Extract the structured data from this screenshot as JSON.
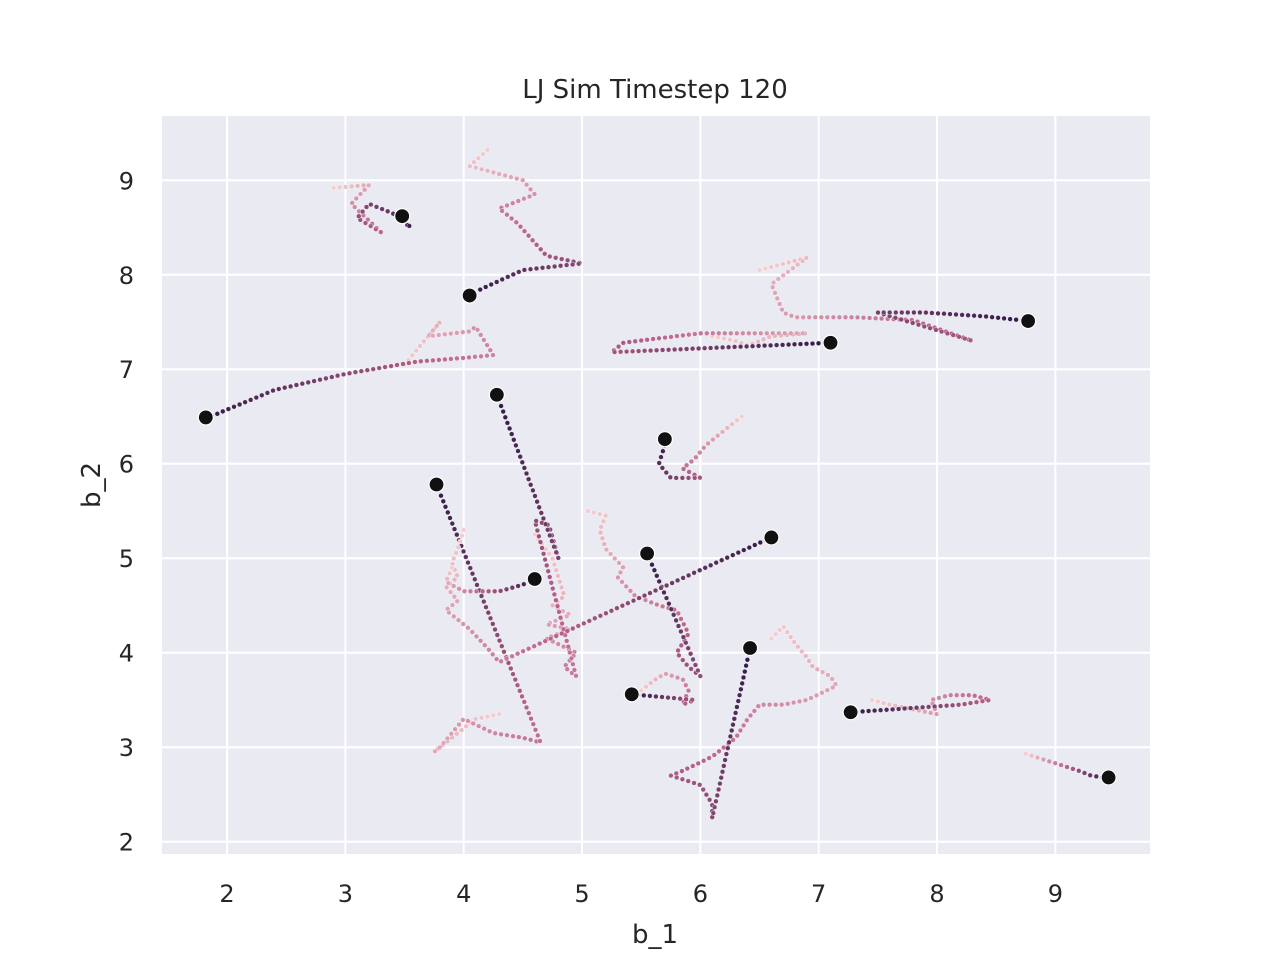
{
  "chart_data": {
    "type": "scatter",
    "title": "LJ Sim Timestep 120",
    "xlabel": "b_1",
    "ylabel": "b_2",
    "xlim": [
      1.45,
      9.8
    ],
    "ylim": [
      1.87,
      9.68
    ],
    "xticks": [
      2,
      3,
      4,
      5,
      6,
      7,
      8,
      9
    ],
    "yticks": [
      2,
      3,
      4,
      5,
      6,
      7,
      8,
      9
    ],
    "grid": true,
    "legend": "none",
    "colors": {
      "background": "#eaeaf2",
      "grid": "#ffffff",
      "trail_old": "#f5cdd0",
      "trail_mid": "#b7628a",
      "trail_recent": "#2e1a47",
      "particle": "#111111"
    },
    "particles": [
      {
        "x": 3.48,
        "y": 8.62,
        "trail": [
          [
            2.9,
            8.92
          ],
          [
            3.2,
            8.95
          ],
          [
            3.05,
            8.75
          ],
          [
            3.3,
            8.45
          ],
          [
            3.1,
            8.6
          ],
          [
            3.2,
            8.75
          ],
          [
            3.4,
            8.65
          ],
          [
            3.55,
            8.5
          ]
        ]
      },
      {
        "x": 4.05,
        "y": 7.78,
        "trail": [
          [
            4.2,
            9.32
          ],
          [
            4.05,
            9.15
          ],
          [
            4.5,
            9.0
          ],
          [
            4.6,
            8.85
          ],
          [
            4.3,
            8.7
          ],
          [
            4.45,
            8.55
          ],
          [
            4.7,
            8.2
          ],
          [
            5.0,
            8.12
          ],
          [
            4.5,
            8.05
          ],
          [
            4.15,
            7.85
          ]
        ]
      },
      {
        "x": 8.77,
        "y": 7.51,
        "trail": [
          [
            6.5,
            8.05
          ],
          [
            6.9,
            8.18
          ],
          [
            6.6,
            7.9
          ],
          [
            6.7,
            7.6
          ],
          [
            6.8,
            7.55
          ],
          [
            7.3,
            7.55
          ],
          [
            7.8,
            7.52
          ],
          [
            8.3,
            7.3
          ],
          [
            7.5,
            7.6
          ],
          [
            7.9,
            7.6
          ],
          [
            8.4,
            7.56
          ],
          [
            8.7,
            7.52
          ]
        ]
      },
      {
        "x": 7.1,
        "y": 7.28,
        "trail": [
          [
            6.1,
            7.35
          ],
          [
            6.3,
            7.3
          ],
          [
            6.4,
            7.25
          ],
          [
            6.6,
            7.35
          ],
          [
            6.9,
            7.38
          ],
          [
            6.4,
            7.38
          ],
          [
            6.0,
            7.38
          ],
          [
            5.6,
            7.32
          ],
          [
            5.35,
            7.28
          ],
          [
            5.25,
            7.18
          ]
        ]
      },
      {
        "x": 1.82,
        "y": 6.49,
        "trail": [
          [
            3.5,
            7.05
          ],
          [
            3.8,
            7.5
          ],
          [
            3.7,
            7.35
          ],
          [
            4.05,
            7.4
          ],
          [
            4.1,
            7.45
          ],
          [
            4.25,
            7.15
          ],
          [
            4.0,
            7.12
          ],
          [
            3.6,
            7.08
          ],
          [
            3.0,
            6.95
          ],
          [
            2.4,
            6.78
          ],
          [
            1.9,
            6.52
          ]
        ]
      },
      {
        "x": 4.28,
        "y": 6.73,
        "trail": [
          [
            4.6,
            5.25
          ],
          [
            4.75,
            5.0
          ],
          [
            4.85,
            4.6
          ],
          [
            4.75,
            4.5
          ],
          [
            4.9,
            4.4
          ],
          [
            4.7,
            4.3
          ],
          [
            4.9,
            4.25
          ],
          [
            4.7,
            4.15
          ],
          [
            4.95,
            4.0
          ],
          [
            4.85,
            3.85
          ],
          [
            4.95,
            3.75
          ],
          [
            4.6,
            5.4
          ],
          [
            4.72,
            5.35
          ],
          [
            4.8,
            5.0
          ]
        ]
      },
      {
        "x": 5.7,
        "y": 6.26,
        "trail": [
          [
            6.35,
            6.5
          ],
          [
            6.2,
            6.35
          ],
          [
            6.05,
            6.2
          ],
          [
            5.95,
            6.05
          ],
          [
            5.85,
            5.95
          ],
          [
            6.0,
            5.85
          ],
          [
            5.75,
            5.85
          ],
          [
            5.65,
            6.0
          ],
          [
            5.7,
            6.2
          ]
        ]
      },
      {
        "x": 3.77,
        "y": 5.78,
        "trail": [
          [
            4.3,
            3.35
          ],
          [
            4.1,
            3.3
          ],
          [
            3.9,
            3.1
          ],
          [
            3.75,
            2.95
          ],
          [
            3.8,
            3.0
          ],
          [
            4.0,
            3.3
          ],
          [
            4.25,
            3.15
          ],
          [
            4.5,
            3.1
          ],
          [
            4.65,
            3.05
          ]
        ]
      },
      {
        "x": 5.55,
        "y": 5.05,
        "trail": [
          [
            5.05,
            5.5
          ],
          [
            5.2,
            5.45
          ],
          [
            5.15,
            5.3
          ],
          [
            5.2,
            5.1
          ],
          [
            5.35,
            4.9
          ],
          [
            5.3,
            4.8
          ],
          [
            5.45,
            4.6
          ],
          [
            5.65,
            4.5
          ],
          [
            5.8,
            4.45
          ],
          [
            5.9,
            4.2
          ],
          [
            5.8,
            4.0
          ],
          [
            5.9,
            3.85
          ],
          [
            6.0,
            3.75
          ]
        ]
      },
      {
        "x": 6.6,
        "y": 5.22,
        "trail": [
          [
            4.0,
            5.3
          ],
          [
            3.95,
            5.1
          ],
          [
            3.9,
            4.95
          ],
          [
            3.95,
            4.8
          ],
          [
            3.85,
            4.7
          ],
          [
            3.95,
            4.55
          ],
          [
            3.85,
            4.45
          ],
          [
            4.05,
            4.25
          ],
          [
            4.2,
            4.05
          ],
          [
            4.3,
            3.9
          ]
        ]
      },
      {
        "x": 4.6,
        "y": 4.78,
        "trail": [
          [
            3.9,
            4.9
          ],
          [
            3.85,
            4.75
          ],
          [
            4.0,
            4.65
          ],
          [
            4.3,
            4.65
          ],
          [
            4.5,
            4.72
          ]
        ]
      },
      {
        "x": 6.42,
        "y": 4.05,
        "trail": [
          [
            6.6,
            4.15
          ],
          [
            6.7,
            4.28
          ],
          [
            6.8,
            4.1
          ],
          [
            6.9,
            3.95
          ],
          [
            6.95,
            3.85
          ],
          [
            7.1,
            3.75
          ],
          [
            7.15,
            3.65
          ],
          [
            6.9,
            3.5
          ],
          [
            6.7,
            3.45
          ],
          [
            6.5,
            3.45
          ],
          [
            6.4,
            3.3
          ],
          [
            6.3,
            3.1
          ],
          [
            6.1,
            2.9
          ],
          [
            5.85,
            2.75
          ],
          [
            5.75,
            2.7
          ],
          [
            6.0,
            2.6
          ],
          [
            6.1,
            2.4
          ],
          [
            6.1,
            2.25
          ]
        ]
      },
      {
        "x": 5.42,
        "y": 3.56,
        "trail": [
          [
            5.5,
            3.6
          ],
          [
            5.6,
            3.7
          ],
          [
            5.7,
            3.78
          ],
          [
            5.85,
            3.72
          ],
          [
            5.9,
            3.6
          ],
          [
            5.85,
            3.45
          ],
          [
            5.95,
            3.5
          ]
        ]
      },
      {
        "x": 7.27,
        "y": 3.37,
        "trail": [
          [
            7.45,
            3.5
          ],
          [
            7.6,
            3.45
          ],
          [
            7.8,
            3.4
          ],
          [
            8.0,
            3.35
          ],
          [
            7.95,
            3.5
          ],
          [
            8.1,
            3.55
          ],
          [
            8.3,
            3.55
          ],
          [
            8.45,
            3.5
          ],
          [
            8.2,
            3.45
          ]
        ]
      },
      {
        "x": 9.45,
        "y": 2.68,
        "trail": [
          [
            8.75,
            2.93
          ],
          [
            9.0,
            2.83
          ],
          [
            9.2,
            2.75
          ],
          [
            9.3,
            2.7
          ],
          [
            9.4,
            2.68
          ]
        ]
      }
    ]
  }
}
